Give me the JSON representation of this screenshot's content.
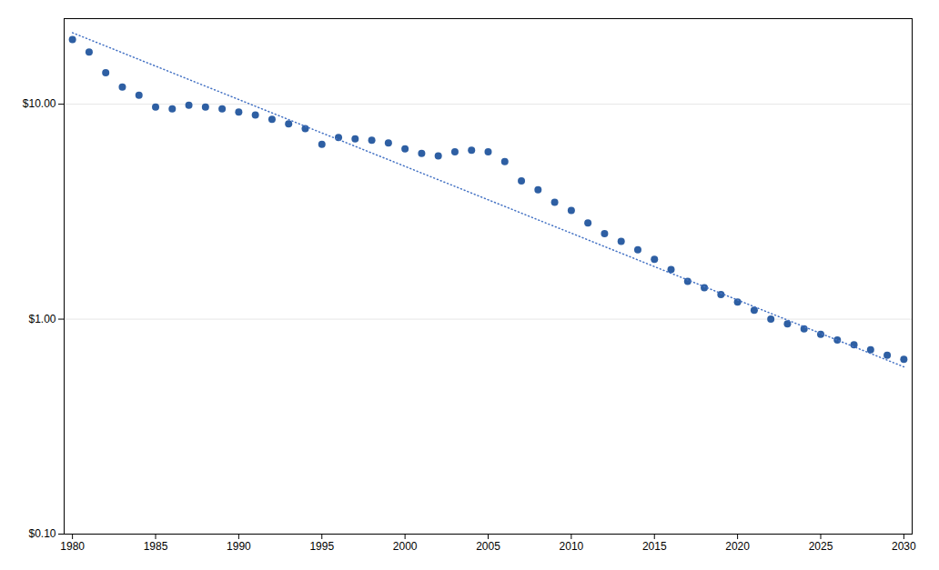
{
  "chart_data": {
    "type": "scatter",
    "log": "y",
    "grid": "y",
    "xlim": [
      1979.5,
      2030.5
    ],
    "xticks": [
      1980,
      1985,
      1990,
      1995,
      2000,
      2005,
      2010,
      2015,
      2020,
      2025,
      2030
    ],
    "ylim": [
      0.1,
      25.0
    ],
    "yticks": [
      {
        "value": 0.1,
        "label": "$0.10"
      },
      {
        "value": 1.0,
        "label": "$1.00"
      },
      {
        "value": 10.0,
        "label": "$10.00"
      }
    ],
    "x": [
      1980,
      1981,
      1982,
      1983,
      1984,
      1985,
      1986,
      1987,
      1988,
      1989,
      1990,
      1991,
      1992,
      1993,
      1994,
      1995,
      1996,
      1997,
      1998,
      1999,
      2000,
      2001,
      2002,
      2003,
      2004,
      2005,
      2006,
      2007,
      2008,
      2009,
      2010,
      2011,
      2012,
      2013,
      2014,
      2015,
      2016,
      2017,
      2018,
      2019,
      2020,
      2021,
      2022,
      2023,
      2024,
      2025,
      2026,
      2027,
      2028,
      2029,
      2030
    ],
    "series": [
      {
        "type": "scatter",
        "marker": "circle",
        "color": "#2e5fa3",
        "values": [
          20.0,
          17.5,
          14.0,
          12.0,
          11.0,
          9.7,
          9.5,
          9.9,
          9.7,
          9.5,
          9.2,
          8.9,
          8.5,
          8.1,
          7.7,
          6.5,
          7.0,
          6.9,
          6.8,
          6.6,
          6.2,
          5.9,
          5.75,
          6.0,
          6.1,
          6.0,
          5.4,
          4.4,
          4.0,
          3.5,
          3.2,
          2.8,
          2.5,
          2.3,
          2.1,
          1.9,
          1.7,
          1.5,
          1.4,
          1.3,
          1.2,
          1.1,
          1.0,
          0.95,
          0.9,
          0.85,
          0.8,
          0.76,
          0.72,
          0.68,
          0.65
        ]
      },
      {
        "type": "line",
        "line_style": "dotted",
        "color": "#4472c4",
        "x": [
          1980,
          2030
        ],
        "values": [
          21.5,
          0.6
        ]
      }
    ]
  }
}
